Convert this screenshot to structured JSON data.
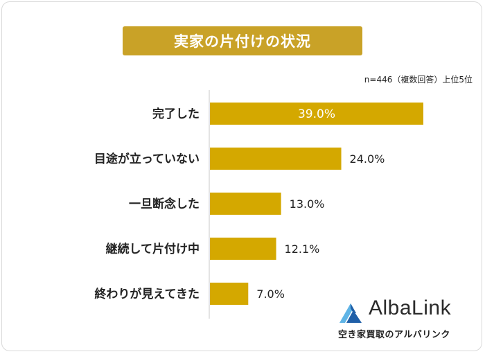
{
  "chart_data": {
    "type": "bar",
    "orientation": "horizontal",
    "title": "実家の片付けの状況",
    "note": "n=446（複数回答）上位5位",
    "categories": [
      "完了した",
      "目途が立っていない",
      "一旦断念した",
      "継続して片付け中",
      "終わりが見えてきた"
    ],
    "values": [
      39.0,
      24.0,
      13.0,
      12.1,
      7.0
    ],
    "value_labels": [
      "39.0%",
      "24.0%",
      "13.0%",
      "12.1%",
      "7.0%"
    ],
    "xlim": [
      0,
      40
    ],
    "grid": false,
    "bar_color": "#d4a800",
    "title_bg_color": "#c9a227"
  },
  "logo": {
    "wordmark": "AlbaLink",
    "tagline": "空き家買取のアルバリンク",
    "color_dark": "#1f5fa8",
    "color_light": "#5fb4e6"
  }
}
